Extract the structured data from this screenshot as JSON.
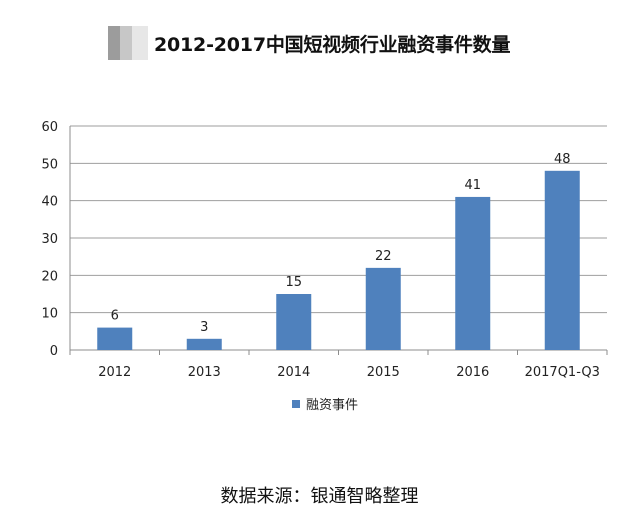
{
  "chart_data": {
    "type": "bar",
    "title": "2012-2017中国短视频行业融资事件数量",
    "categories": [
      "2012",
      "2013",
      "2014",
      "2015",
      "2016",
      "2017Q1-Q3"
    ],
    "series": [
      {
        "name": "融资事件",
        "values": [
          6,
          3,
          15,
          22,
          41,
          48
        ],
        "color": "#4f81bd"
      }
    ],
    "ylim": [
      0,
      60
    ],
    "yticks": [
      0,
      10,
      20,
      30,
      40,
      50,
      60
    ],
    "grid": true,
    "legend": "bottom",
    "data_labels": true,
    "xlabel": "",
    "ylabel": ""
  },
  "source_note": "数据来源：银通智略整理"
}
